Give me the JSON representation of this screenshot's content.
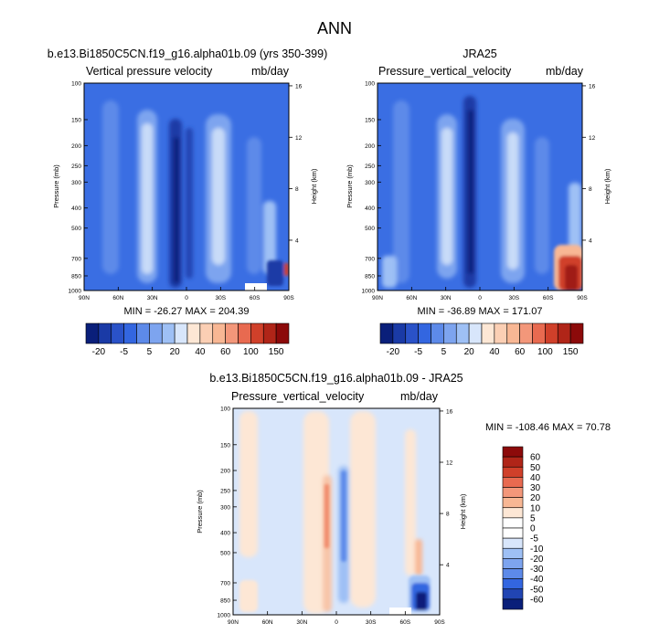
{
  "title": "ANN",
  "colors": {
    "deep_navy": "#0a1f7a",
    "blue": "#3366e0",
    "mid_blue": "#4f7fe8",
    "light_blue": "#9ec0f5",
    "pale_blue": "#d8e6fb",
    "pale_peach": "#fde7d5",
    "peach": "#f8b794",
    "red": "#d0402a",
    "dark_red": "#8c0a0a"
  },
  "chart_data": [
    {
      "type": "heatmap",
      "panel": "model",
      "title": "b.e13.Bi1850C5CN.f19_g16.alpha01b.09 (yrs 350-399)",
      "left_label": "Vertical pressure velocity",
      "right_label": "mb/day",
      "xlabel": "",
      "ylabel": "Pressure (mb)",
      "ylabel_right": "Height (km)",
      "x_ticks": [
        "90N",
        "60N",
        "30N",
        "0",
        "30S",
        "60S",
        "90S"
      ],
      "x_range": [
        90,
        -90
      ],
      "y_ticks": [
        100,
        150,
        200,
        250,
        300,
        400,
        500,
        700,
        850,
        1000
      ],
      "y_range": [
        1000,
        100
      ],
      "y_right_ticks": [
        16,
        12,
        8,
        4
      ],
      "stats": "MIN = -26.27  MAX = 204.39",
      "colorbar_levels": [
        "-20",
        "-5",
        "5",
        "20",
        "40",
        "60",
        "100",
        "150"
      ]
    },
    {
      "type": "heatmap",
      "panel": "obs",
      "title": "JRA25",
      "left_label": "Pressure_vertical_velocity",
      "right_label": "mb/day",
      "xlabel": "",
      "ylabel": "Pressure (mb)",
      "ylabel_right": "Height (km)",
      "x_ticks": [
        "90N",
        "60N",
        "30N",
        "0",
        "30S",
        "60S",
        "90S"
      ],
      "x_range": [
        90,
        -90
      ],
      "y_ticks": [
        100,
        150,
        200,
        250,
        300,
        400,
        500,
        700,
        850,
        1000
      ],
      "y_range": [
        1000,
        100
      ],
      "y_right_ticks": [
        16,
        12,
        8,
        4
      ],
      "stats": "MIN = -36.89  MAX = 171.07",
      "colorbar_levels": [
        "-20",
        "-5",
        "5",
        "20",
        "40",
        "60",
        "100",
        "150"
      ]
    },
    {
      "type": "heatmap",
      "panel": "diff",
      "title": "b.e13.Bi1850C5CN.f19_g16.alpha01b.09 - JRA25",
      "left_label": "Pressure_vertical_velocity",
      "right_label": "mb/day",
      "xlabel": "",
      "ylabel": "Pressure (mb)",
      "ylabel_right": "Height (km)",
      "x_ticks": [
        "90N",
        "60N",
        "30N",
        "0",
        "30S",
        "60S",
        "90S"
      ],
      "x_range": [
        90,
        -90
      ],
      "y_ticks": [
        100,
        150,
        200,
        250,
        300,
        400,
        500,
        700,
        850,
        1000
      ],
      "y_range": [
        1000,
        100
      ],
      "y_right_ticks": [
        16,
        12,
        8,
        4
      ],
      "stats": "MIN = -108.46  MAX = 70.78",
      "colorbar_levels": [
        "60",
        "50",
        "40",
        "30",
        "20",
        "10",
        "5",
        "0",
        "-5",
        "-10",
        "-20",
        "-30",
        "-40",
        "-50",
        "-60"
      ]
    }
  ]
}
